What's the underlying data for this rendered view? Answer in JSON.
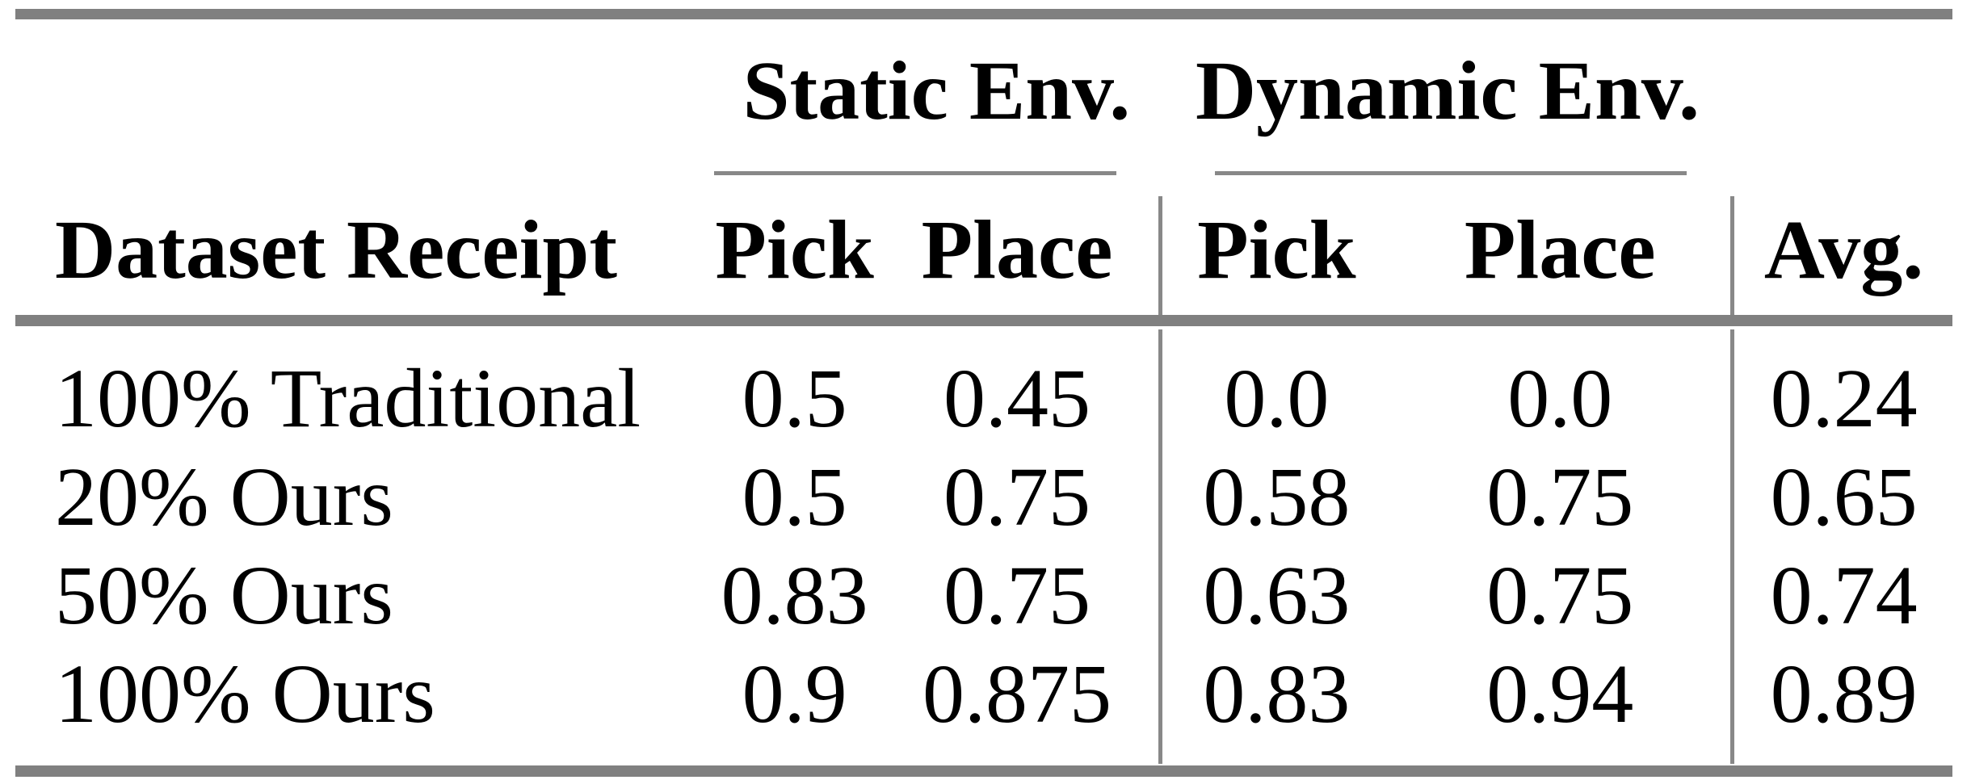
{
  "table": {
    "group_headers": {
      "static": "Static Env.",
      "dynamic": "Dynamic Env."
    },
    "headers": {
      "row_label": "Dataset Receipt",
      "static_pick": "Pick",
      "static_place": "Place",
      "dynamic_pick": "Pick",
      "dynamic_place": "Place",
      "avg": "Avg."
    },
    "rows": [
      {
        "label": "100% Traditional",
        "static_pick": "0.5",
        "static_place": "0.45",
        "dynamic_pick": "0.0",
        "dynamic_place": "0.0",
        "avg": "0.24"
      },
      {
        "label": "20% Ours",
        "static_pick": "0.5",
        "static_place": "0.75",
        "dynamic_pick": "0.58",
        "dynamic_place": "0.75",
        "avg": "0.65"
      },
      {
        "label": "50% Ours",
        "static_pick": "0.83",
        "static_place": "0.75",
        "dynamic_pick": "0.63",
        "dynamic_place": "0.75",
        "avg": "0.74"
      },
      {
        "label": "100% Ours",
        "static_pick": "0.9",
        "static_place": "0.875",
        "dynamic_pick": "0.83",
        "dynamic_place": "0.94",
        "avg": "0.89"
      }
    ],
    "colors": {
      "rule_thick": "#808080",
      "rule_thin": "#888888",
      "text": "#000000",
      "background": "#ffffff"
    }
  },
  "chart_data": {
    "type": "table",
    "title": "",
    "column_groups": [
      "Static Env.",
      "Dynamic Env."
    ],
    "columns": [
      "Dataset Receipt",
      "Static Env. Pick",
      "Static Env. Place",
      "Dynamic Env. Pick",
      "Dynamic Env. Place",
      "Avg."
    ],
    "rows": [
      [
        "100% Traditional",
        0.5,
        0.45,
        0.0,
        0.0,
        0.24
      ],
      [
        "20% Ours",
        0.5,
        0.75,
        0.58,
        0.75,
        0.65
      ],
      [
        "50% Ours",
        0.83,
        0.75,
        0.63,
        0.75,
        0.74
      ],
      [
        "100% Ours",
        0.9,
        0.875,
        0.83,
        0.94,
        0.89
      ]
    ]
  }
}
